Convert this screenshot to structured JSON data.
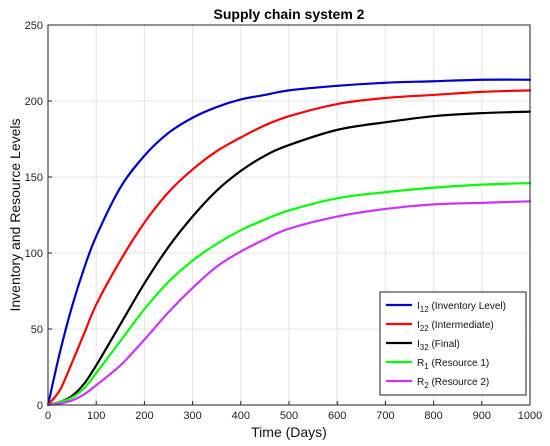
{
  "chart_data": {
    "type": "line",
    "title": "Supply chain system 2",
    "xlabel": "Time (Days)",
    "ylabel": "Inventory and Resource Levels",
    "xlim": [
      0,
      1000
    ],
    "ylim": [
      0,
      250
    ],
    "xticks": [
      0,
      100,
      200,
      300,
      400,
      500,
      600,
      700,
      800,
      900,
      1000
    ],
    "yticks": [
      0,
      50,
      100,
      150,
      200,
      250
    ],
    "grid": true,
    "legend_position": "bottom-right",
    "x": [
      0,
      25,
      50,
      75,
      100,
      150,
      200,
      250,
      300,
      350,
      400,
      450,
      500,
      600,
      700,
      800,
      900,
      1000
    ],
    "series": [
      {
        "name": "I12 (Inventory Level)",
        "label_main": "I",
        "label_sub": "12",
        "label_rest": " (Inventory Level)",
        "color": "#0000cc",
        "values": [
          0,
          35,
          65,
          90,
          111,
          143,
          164,
          179,
          189,
          196,
          201,
          204,
          207,
          210,
          212,
          213,
          214,
          214
        ]
      },
      {
        "name": "I22 (Intermediate)",
        "label_main": "I",
        "label_sub": "22",
        "label_rest": " (Intermediate)",
        "color": "#ff0000",
        "values": [
          0,
          10,
          28,
          47,
          66,
          95,
          120,
          140,
          155,
          167,
          176,
          184,
          190,
          198,
          202,
          204,
          206,
          207
        ]
      },
      {
        "name": "I32 (Final)",
        "label_main": "I",
        "label_sub": "32",
        "label_rest": " (Final)",
        "color": "#000000",
        "values": [
          0,
          2,
          6,
          14,
          26,
          53,
          80,
          104,
          124,
          141,
          154,
          164,
          171,
          181,
          186,
          190,
          192,
          193
        ]
      },
      {
        "name": "R1 (Resource 1)",
        "label_main": "R",
        "label_sub": "1",
        "label_rest": " (Resource 1)",
        "color": "#00ff00",
        "values": [
          0,
          2,
          5,
          11,
          21,
          42,
          63,
          81,
          95,
          106,
          115,
          122,
          128,
          136,
          140,
          143,
          145,
          146
        ]
      },
      {
        "name": "R2 (Resource 2)",
        "label_main": "R",
        "label_sub": "2",
        "label_rest": " (Resource 2)",
        "color": "#cc33ff",
        "values": [
          0,
          1,
          3,
          7,
          13,
          26,
          43,
          61,
          77,
          91,
          101,
          109,
          116,
          124,
          129,
          132,
          133,
          134
        ]
      }
    ]
  }
}
